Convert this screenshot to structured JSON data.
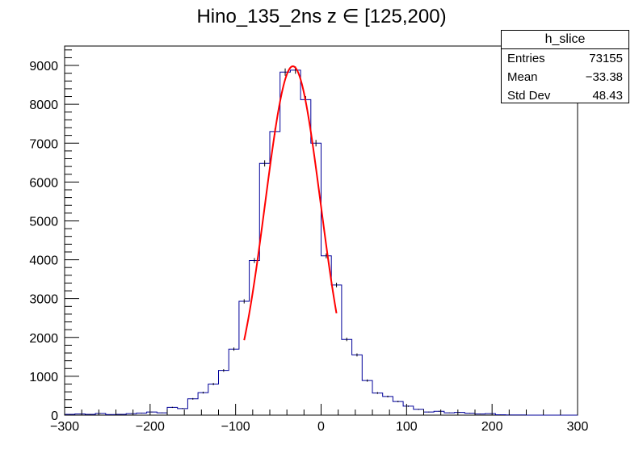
{
  "chart_data": {
    "type": "histogram",
    "title": "Hino_135_2ns z  ∈ [125,200)",
    "xlabel": "",
    "ylabel": "",
    "xlim": [
      -300,
      300
    ],
    "ylim": [
      0,
      9500
    ],
    "bin_width": 12,
    "x_ticks": [
      "−300",
      "−200",
      "−100",
      "0",
      "100",
      "200",
      "300"
    ],
    "y_ticks": [
      "0",
      "1000",
      "2000",
      "3000",
      "4000",
      "5000",
      "6000",
      "7000",
      "8000",
      "9000"
    ],
    "bins": [
      {
        "x": -294,
        "y": 20
      },
      {
        "x": -282,
        "y": 30
      },
      {
        "x": -270,
        "y": 20
      },
      {
        "x": -258,
        "y": 45
      },
      {
        "x": -246,
        "y": 15
      },
      {
        "x": -234,
        "y": 20
      },
      {
        "x": -222,
        "y": 40
      },
      {
        "x": -210,
        "y": 55
      },
      {
        "x": -198,
        "y": 80
      },
      {
        "x": -186,
        "y": 60
      },
      {
        "x": -174,
        "y": 200
      },
      {
        "x": -162,
        "y": 170
      },
      {
        "x": -150,
        "y": 420
      },
      {
        "x": -138,
        "y": 580
      },
      {
        "x": -126,
        "y": 800
      },
      {
        "x": -114,
        "y": 1150
      },
      {
        "x": -102,
        "y": 1700
      },
      {
        "x": -90,
        "y": 2930
      },
      {
        "x": -78,
        "y": 3980
      },
      {
        "x": -66,
        "y": 6480
      },
      {
        "x": -54,
        "y": 7300
      },
      {
        "x": -42,
        "y": 8830
      },
      {
        "x": -30,
        "y": 8880
      },
      {
        "x": -18,
        "y": 8120
      },
      {
        "x": -6,
        "y": 7000
      },
      {
        "x": 6,
        "y": 4100
      },
      {
        "x": 18,
        "y": 3350
      },
      {
        "x": 30,
        "y": 1950
      },
      {
        "x": 42,
        "y": 1550
      },
      {
        "x": 54,
        "y": 890
      },
      {
        "x": 66,
        "y": 570
      },
      {
        "x": 78,
        "y": 480
      },
      {
        "x": 90,
        "y": 350
      },
      {
        "x": 102,
        "y": 230
      },
      {
        "x": 114,
        "y": 150
      },
      {
        "x": 126,
        "y": 80
      },
      {
        "x": 138,
        "y": 100
      },
      {
        "x": 150,
        "y": 60
      },
      {
        "x": 162,
        "y": 70
      },
      {
        "x": 174,
        "y": 50
      },
      {
        "x": 186,
        "y": 30
      },
      {
        "x": 198,
        "y": 40
      },
      {
        "x": 210,
        "y": 10
      },
      {
        "x": 222,
        "y": 5
      },
      {
        "x": 234,
        "y": 5
      },
      {
        "x": 246,
        "y": 0
      },
      {
        "x": 258,
        "y": 0
      },
      {
        "x": 270,
        "y": 0
      },
      {
        "x": 282,
        "y": 0
      },
      {
        "x": 294,
        "y": 0
      }
    ],
    "fit": {
      "function": "gaus",
      "mean": -33,
      "sigma": 32.5,
      "amplitude": 8980,
      "range": [
        -90,
        18
      ],
      "color": "#ff0000"
    },
    "histogram_color": "#000099",
    "stats": {
      "name": "h_slice",
      "entries_label": "Entries",
      "entries": "73155",
      "mean_label": "Mean",
      "mean": "−33.38",
      "std_label": "Std Dev",
      "std": "48.43"
    }
  }
}
